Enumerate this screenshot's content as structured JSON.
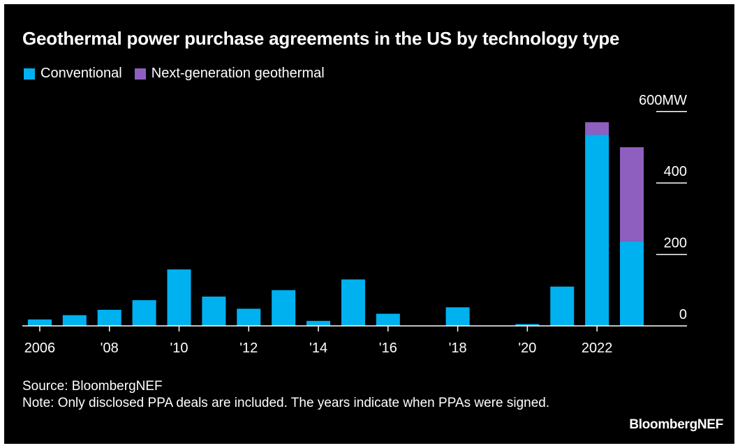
{
  "title": "Geothermal power purchase agreements in the US by technology type",
  "legend": [
    {
      "label": "Conventional",
      "color": "#00b1f0"
    },
    {
      "label": "Next-generation geothermal",
      "color": "#8f5fc0"
    }
  ],
  "footer": {
    "source": "Source: BloombergNEF",
    "note": "Note: Only disclosed PPA deals are included. The years indicate when PPAs were signed."
  },
  "brand": "BloombergNEF",
  "chart_data": {
    "type": "bar",
    "stacked": true,
    "categories": [
      2006,
      2007,
      2008,
      2009,
      2010,
      2011,
      2012,
      2013,
      2014,
      2015,
      2016,
      2017,
      2018,
      2019,
      2020,
      2021,
      2022,
      2023
    ],
    "series": [
      {
        "name": "Conventional",
        "color": "#00b1f0",
        "values": [
          18,
          30,
          45,
          72,
          158,
          82,
          48,
          100,
          14,
          130,
          34,
          0,
          52,
          0,
          5,
          110,
          535,
          237
        ]
      },
      {
        "name": "Next-generation geothermal",
        "color": "#8f5fc0",
        "values": [
          0,
          0,
          0,
          0,
          0,
          0,
          0,
          0,
          0,
          0,
          0,
          0,
          0,
          0,
          0,
          0,
          35,
          263
        ]
      }
    ],
    "x_tick_labels": [
      {
        "year": 2006,
        "label": "2006"
      },
      {
        "year": 2008,
        "label": "'08"
      },
      {
        "year": 2010,
        "label": "'10"
      },
      {
        "year": 2012,
        "label": "'12"
      },
      {
        "year": 2014,
        "label": "'14"
      },
      {
        "year": 2016,
        "label": "'16"
      },
      {
        "year": 2018,
        "label": "'18"
      },
      {
        "year": 2020,
        "label": "'20"
      },
      {
        "year": 2022,
        "label": "2022"
      }
    ],
    "y_ticks": [
      {
        "value": 0,
        "label": "0"
      },
      {
        "value": 200,
        "label": "200"
      },
      {
        "value": 400,
        "label": "400"
      },
      {
        "value": 600,
        "label": "600MW"
      }
    ],
    "ylim": [
      0,
      600
    ],
    "y_axis_side": "right",
    "grid": false,
    "legend_position": "top-left"
  }
}
